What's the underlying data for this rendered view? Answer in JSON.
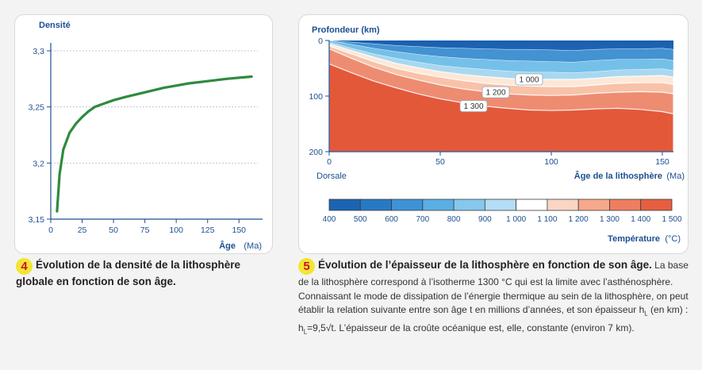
{
  "chart_data": [
    {
      "type": "line",
      "ylabel": "Densité",
      "xlabel": "Âge",
      "xunit": "(Ma)",
      "xlim": [
        0,
        165
      ],
      "ylim": [
        3.15,
        3.3
      ],
      "xticks": [
        0,
        25,
        50,
        75,
        100,
        125,
        150
      ],
      "xtick_labels": [
        "0",
        "25",
        "50",
        "75",
        "100",
        "125",
        "150"
      ],
      "yticks": [
        3.15,
        3.2,
        3.25,
        3.3
      ],
      "ytick_labels": [
        "3,15",
        "3,2",
        "3,25",
        "3,3"
      ],
      "grid": "horizontal",
      "series": [
        {
          "color": "#2e8b3e",
          "x": [
            5,
            7,
            10,
            15,
            20,
            25,
            30,
            35,
            40,
            50,
            60,
            75,
            90,
            100,
            110,
            125,
            140,
            150,
            160
          ],
          "y": [
            3.157,
            3.19,
            3.212,
            3.227,
            3.235,
            3.241,
            3.246,
            3.25,
            3.252,
            3.256,
            3.259,
            3.263,
            3.267,
            3.269,
            3.271,
            3.273,
            3.275,
            3.276,
            3.277
          ]
        }
      ]
    },
    {
      "type": "contour",
      "ylabel": "Profondeur (km)",
      "xlabel": "Âge de la lithosphère",
      "xunit": "(Ma)",
      "left_label": "Dorsale",
      "xlim": [
        0,
        155
      ],
      "ylim": [
        0,
        200
      ],
      "xticks": [
        0,
        50,
        100,
        150
      ],
      "yticks": [
        0,
        100,
        200
      ],
      "isotherms": [
        {
          "temp": 500,
          "color": "#4392d2",
          "depths": [
            0,
            3,
            6,
            9,
            11,
            13,
            14,
            15,
            16,
            16,
            17,
            18,
            16,
            15,
            15,
            14,
            16
          ]
        },
        {
          "temp": 700,
          "color": "#75c0e8",
          "depths": [
            0,
            7,
            14,
            20,
            25,
            29,
            32,
            34,
            36,
            37,
            38,
            39,
            36,
            34,
            34,
            33,
            36
          ]
        },
        {
          "temp": 900,
          "color": "#a8d8f0",
          "depths": [
            3,
            14,
            24,
            32,
            39,
            45,
            49,
            52,
            55,
            57,
            57,
            58,
            56,
            53,
            52,
            51,
            54
          ]
        },
        {
          "temp": 1000,
          "color": "#fde8d8",
          "depths": [
            6,
            18,
            30,
            41,
            49,
            56,
            61,
            65,
            68,
            70,
            70,
            70,
            68,
            65,
            64,
            63,
            66
          ]
        },
        {
          "temp": 1100,
          "color": "#f8c2a8",
          "depths": [
            10,
            24,
            38,
            50,
            59,
            66,
            72,
            77,
            80,
            82,
            83,
            83,
            80,
            77,
            76,
            76,
            79
          ]
        },
        {
          "temp": 1200,
          "color": "#ee8c72",
          "depths": [
            15,
            32,
            48,
            61,
            71,
            80,
            87,
            92,
            96,
            98,
            99,
            98,
            95,
            93,
            92,
            93,
            96
          ]
        },
        {
          "temp": 1300,
          "color": "#e4583a",
          "depths": [
            42,
            58,
            73,
            85,
            96,
            105,
            112,
            118,
            122,
            125,
            126,
            125,
            123,
            122,
            124,
            128,
            132
          ]
        }
      ],
      "isotherm_x": [
        0,
        10,
        20,
        30,
        40,
        50,
        60,
        70,
        80,
        90,
        100,
        110,
        120,
        130,
        140,
        150,
        155
      ],
      "deep_color": "#e4583a",
      "contour_labels": [
        {
          "text": "1 000",
          "x": 90,
          "y": 70
        },
        {
          "text": "1 200",
          "x": 75,
          "y": 93
        },
        {
          "text": "1 300",
          "x": 65,
          "y": 118
        }
      ],
      "colorbar": {
        "title": "Température",
        "unit": "(°C)",
        "labels": [
          "400",
          "500",
          "600",
          "700",
          "800",
          "900",
          "1 000",
          "1 100",
          "1 200",
          "1 300",
          "1 400",
          "1 500"
        ],
        "colors": [
          "#1d63b3",
          "#2879c4",
          "#3d93d6",
          "#5aaee4",
          "#86c7ec",
          "#b3ddf4",
          "#ffffff",
          "#fbd5c4",
          "#f5a88c",
          "#ee7e60",
          "#e65e40"
        ]
      }
    }
  ],
  "captions": {
    "left": {
      "number": "4",
      "title": "Évolution de la densité de la lithosphère globale en fonction de son âge."
    },
    "right": {
      "number": "5",
      "title": "Évolution de l’épaisseur de la lithosphère en fonction de son âge.",
      "text": " La base de la lithosphère correspond à l’isotherme 1300 °C qui est la limite avec l’asthénosphère. Connaissant le mode de dissipation de l’énergie thermique au sein de la lithosphère, on peut établir la relation suivante entre son âge t en millions d’années, et son épaisseur h",
      "sub1": "L",
      "text2": " (en km) : h",
      "sub2": "L",
      "formula": "=9,5√t.",
      "text3": " L’épaisseur de la croûte océanique est, elle, constante (environ 7 km)."
    }
  }
}
